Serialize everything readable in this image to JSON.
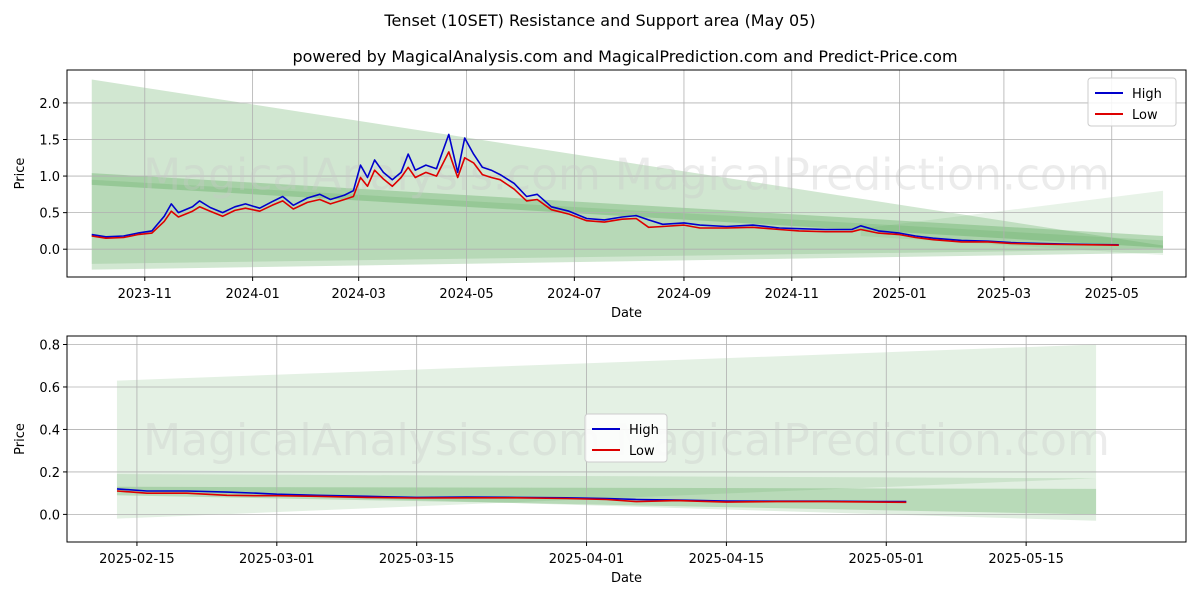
{
  "title": "Tenset (10SET) Resistance and Support area (May 05)",
  "subtitle": "powered by MagicalAnalysis.com and MagicalPrediction.com and Predict-Price.com",
  "watermark": "MagicalAnalysis.com    MagicalPrediction.com",
  "colors": {
    "high": "#0000cc",
    "low": "#dd0000",
    "band": "#5aa85a",
    "grid": "#b0b0b0"
  },
  "chart_data": [
    {
      "type": "line",
      "id": "top",
      "xlabel": "Date",
      "ylabel": "Price",
      "xlim": [
        "2023-09-18",
        "2025-06-12"
      ],
      "ylim": [
        -0.38,
        2.45
      ],
      "yticks": [
        0.0,
        0.5,
        1.0,
        1.5,
        2.0
      ],
      "ytick_labels": [
        "0.0",
        "0.5",
        "1.0",
        "1.5",
        "2.0"
      ],
      "xticks": [
        "2023-11-01",
        "2024-01-01",
        "2024-03-01",
        "2024-05-01",
        "2024-07-01",
        "2024-09-01",
        "2024-11-01",
        "2025-01-01",
        "2025-03-01",
        "2025-05-01"
      ],
      "xtick_labels": [
        "2023-11",
        "2024-01",
        "2024-03",
        "2024-05",
        "2024-07",
        "2024-09",
        "2024-11",
        "2025-01",
        "2025-03",
        "2025-05"
      ],
      "legend": {
        "position": "top-right",
        "entries": [
          "High",
          "Low"
        ]
      },
      "bands": [
        {
          "x": [
            "2023-10-02",
            "2025-05-30"
          ],
          "upper": [
            2.32,
            0.05
          ],
          "lower": [
            -0.28,
            -0.05
          ],
          "opacity": 0.28
        },
        {
          "x": [
            "2023-10-02",
            "2025-05-30"
          ],
          "upper": [
            1.04,
            0.18
          ],
          "lower": [
            0.88,
            0.02
          ],
          "opacity": 0.35
        },
        {
          "x": [
            "2023-10-02",
            "2025-05-30"
          ],
          "upper": [
            0.95,
            0.12
          ],
          "lower": [
            -0.2,
            0.0
          ],
          "opacity": 0.22
        },
        {
          "x": [
            "2024-12-10",
            "2025-05-30"
          ],
          "upper": [
            0.28,
            0.8
          ],
          "lower": [
            0.18,
            -0.08
          ],
          "opacity": 0.14
        }
      ],
      "series": [
        {
          "name": "High",
          "points": [
            [
              "2023-10-02",
              0.2
            ],
            [
              "2023-10-10",
              0.17
            ],
            [
              "2023-10-20",
              0.18
            ],
            [
              "2023-10-28",
              0.22
            ],
            [
              "2023-11-05",
              0.25
            ],
            [
              "2023-11-12",
              0.45
            ],
            [
              "2023-11-16",
              0.62
            ],
            [
              "2023-11-20",
              0.5
            ],
            [
              "2023-11-28",
              0.58
            ],
            [
              "2023-12-02",
              0.66
            ],
            [
              "2023-12-08",
              0.57
            ],
            [
              "2023-12-15",
              0.5
            ],
            [
              "2023-12-22",
              0.58
            ],
            [
              "2023-12-28",
              0.62
            ],
            [
              "2024-01-05",
              0.56
            ],
            [
              "2024-01-12",
              0.65
            ],
            [
              "2024-01-18",
              0.72
            ],
            [
              "2024-01-24",
              0.6
            ],
            [
              "2024-02-01",
              0.7
            ],
            [
              "2024-02-08",
              0.75
            ],
            [
              "2024-02-14",
              0.68
            ],
            [
              "2024-02-22",
              0.74
            ],
            [
              "2024-02-27",
              0.8
            ],
            [
              "2024-03-02",
              1.15
            ],
            [
              "2024-03-06",
              0.98
            ],
            [
              "2024-03-10",
              1.22
            ],
            [
              "2024-03-15",
              1.05
            ],
            [
              "2024-03-20",
              0.95
            ],
            [
              "2024-03-25",
              1.05
            ],
            [
              "2024-03-29",
              1.3
            ],
            [
              "2024-04-02",
              1.08
            ],
            [
              "2024-04-08",
              1.15
            ],
            [
              "2024-04-14",
              1.1
            ],
            [
              "2024-04-21",
              1.57
            ],
            [
              "2024-04-26",
              1.05
            ],
            [
              "2024-04-30",
              1.52
            ],
            [
              "2024-05-05",
              1.3
            ],
            [
              "2024-05-10",
              1.12
            ],
            [
              "2024-05-15",
              1.08
            ],
            [
              "2024-05-20",
              1.02
            ],
            [
              "2024-05-28",
              0.9
            ],
            [
              "2024-06-04",
              0.72
            ],
            [
              "2024-06-10",
              0.75
            ],
            [
              "2024-06-18",
              0.58
            ],
            [
              "2024-06-28",
              0.52
            ],
            [
              "2024-07-08",
              0.42
            ],
            [
              "2024-07-18",
              0.4
            ],
            [
              "2024-07-28",
              0.44
            ],
            [
              "2024-08-05",
              0.46
            ],
            [
              "2024-08-12",
              0.4
            ],
            [
              "2024-08-20",
              0.34
            ],
            [
              "2024-09-01",
              0.36
            ],
            [
              "2024-09-10",
              0.33
            ],
            [
              "2024-09-25",
              0.31
            ],
            [
              "2024-10-10",
              0.33
            ],
            [
              "2024-10-25",
              0.29
            ],
            [
              "2024-11-05",
              0.28
            ],
            [
              "2024-11-20",
              0.27
            ],
            [
              "2024-12-05",
              0.27
            ],
            [
              "2024-12-10",
              0.32
            ],
            [
              "2024-12-20",
              0.25
            ],
            [
              "2025-01-01",
              0.22
            ],
            [
              "2025-01-10",
              0.18
            ],
            [
              "2025-01-20",
              0.15
            ],
            [
              "2025-02-05",
              0.12
            ],
            [
              "2025-02-20",
              0.11
            ],
            [
              "2025-03-05",
              0.09
            ],
            [
              "2025-03-20",
              0.08
            ],
            [
              "2025-04-05",
              0.07
            ],
            [
              "2025-04-20",
              0.065
            ],
            [
              "2025-05-05",
              0.06
            ]
          ]
        },
        {
          "name": "Low",
          "points": [
            [
              "2023-10-02",
              0.18
            ],
            [
              "2023-10-10",
              0.15
            ],
            [
              "2023-10-20",
              0.16
            ],
            [
              "2023-10-28",
              0.2
            ],
            [
              "2023-11-05",
              0.22
            ],
            [
              "2023-11-12",
              0.38
            ],
            [
              "2023-11-16",
              0.52
            ],
            [
              "2023-11-20",
              0.44
            ],
            [
              "2023-11-28",
              0.52
            ],
            [
              "2023-12-02",
              0.58
            ],
            [
              "2023-12-08",
              0.52
            ],
            [
              "2023-12-15",
              0.45
            ],
            [
              "2023-12-22",
              0.53
            ],
            [
              "2023-12-28",
              0.56
            ],
            [
              "2024-01-05",
              0.52
            ],
            [
              "2024-01-12",
              0.6
            ],
            [
              "2024-01-18",
              0.66
            ],
            [
              "2024-01-24",
              0.55
            ],
            [
              "2024-02-01",
              0.64
            ],
            [
              "2024-02-08",
              0.68
            ],
            [
              "2024-02-14",
              0.62
            ],
            [
              "2024-02-22",
              0.68
            ],
            [
              "2024-02-27",
              0.72
            ],
            [
              "2024-03-02",
              0.98
            ],
            [
              "2024-03-06",
              0.86
            ],
            [
              "2024-03-10",
              1.08
            ],
            [
              "2024-03-15",
              0.96
            ],
            [
              "2024-03-20",
              0.86
            ],
            [
              "2024-03-25",
              0.98
            ],
            [
              "2024-03-29",
              1.12
            ],
            [
              "2024-04-02",
              0.98
            ],
            [
              "2024-04-08",
              1.05
            ],
            [
              "2024-04-14",
              1.0
            ],
            [
              "2024-04-21",
              1.33
            ],
            [
              "2024-04-26",
              0.98
            ],
            [
              "2024-04-30",
              1.25
            ],
            [
              "2024-05-05",
              1.18
            ],
            [
              "2024-05-10",
              1.02
            ],
            [
              "2024-05-15",
              0.98
            ],
            [
              "2024-05-20",
              0.95
            ],
            [
              "2024-05-28",
              0.82
            ],
            [
              "2024-06-04",
              0.66
            ],
            [
              "2024-06-10",
              0.68
            ],
            [
              "2024-06-18",
              0.54
            ],
            [
              "2024-06-28",
              0.48
            ],
            [
              "2024-07-08",
              0.39
            ],
            [
              "2024-07-18",
              0.37
            ],
            [
              "2024-07-28",
              0.41
            ],
            [
              "2024-08-05",
              0.42
            ],
            [
              "2024-08-12",
              0.3
            ],
            [
              "2024-08-20",
              0.31
            ],
            [
              "2024-09-01",
              0.33
            ],
            [
              "2024-09-10",
              0.29
            ],
            [
              "2024-09-25",
              0.29
            ],
            [
              "2024-10-10",
              0.3
            ],
            [
              "2024-10-25",
              0.27
            ],
            [
              "2024-11-05",
              0.25
            ],
            [
              "2024-11-20",
              0.24
            ],
            [
              "2024-12-05",
              0.24
            ],
            [
              "2024-12-10",
              0.27
            ],
            [
              "2024-12-20",
              0.22
            ],
            [
              "2025-01-01",
              0.2
            ],
            [
              "2025-01-10",
              0.16
            ],
            [
              "2025-01-20",
              0.13
            ],
            [
              "2025-02-05",
              0.1
            ],
            [
              "2025-02-20",
              0.1
            ],
            [
              "2025-03-05",
              0.08
            ],
            [
              "2025-03-20",
              0.07
            ],
            [
              "2025-04-05",
              0.065
            ],
            [
              "2025-04-20",
              0.06
            ],
            [
              "2025-05-05",
              0.055
            ]
          ]
        }
      ]
    },
    {
      "type": "line",
      "id": "bottom",
      "xlabel": "Date",
      "ylabel": "Price",
      "xlim": [
        "2025-02-08",
        "2025-05-31"
      ],
      "ylim": [
        -0.13,
        0.84
      ],
      "yticks": [
        0.0,
        0.2,
        0.4,
        0.6,
        0.8
      ],
      "ytick_labels": [
        "0.0",
        "0.2",
        "0.4",
        "0.6",
        "0.8"
      ],
      "xticks": [
        "2025-02-15",
        "2025-03-01",
        "2025-03-15",
        "2025-04-01",
        "2025-04-15",
        "2025-05-01",
        "2025-05-15"
      ],
      "xtick_labels": [
        "2025-02-15",
        "2025-03-01",
        "2025-03-15",
        "2025-04-01",
        "2025-04-15",
        "2025-05-01",
        "2025-05-15"
      ],
      "legend": {
        "position": "center",
        "entries": [
          "High",
          "Low"
        ]
      },
      "bands": [
        {
          "x": [
            "2025-02-13",
            "2025-05-22"
          ],
          "upper": [
            0.63,
            0.8
          ],
          "lower": [
            -0.02,
            0.17
          ],
          "opacity": 0.16
        },
        {
          "x": [
            "2025-02-13",
            "2025-05-22"
          ],
          "upper": [
            0.19,
            0.17
          ],
          "lower": [
            0.11,
            -0.03
          ],
          "opacity": 0.18
        },
        {
          "x": [
            "2025-02-13",
            "2025-05-22"
          ],
          "upper": [
            0.13,
            0.12
          ],
          "lower": [
            0.09,
            0.0
          ],
          "opacity": 0.3
        }
      ],
      "series": [
        {
          "name": "High",
          "points": [
            [
              "2025-02-13",
              0.12
            ],
            [
              "2025-02-16",
              0.11
            ],
            [
              "2025-02-20",
              0.11
            ],
            [
              "2025-02-24",
              0.105
            ],
            [
              "2025-02-27",
              0.1
            ],
            [
              "2025-03-01",
              0.095
            ],
            [
              "2025-03-05",
              0.09
            ],
            [
              "2025-03-10",
              0.085
            ],
            [
              "2025-03-15",
              0.08
            ],
            [
              "2025-03-20",
              0.082
            ],
            [
              "2025-03-25",
              0.08
            ],
            [
              "2025-03-30",
              0.078
            ],
            [
              "2025-04-03",
              0.075
            ],
            [
              "2025-04-06",
              0.07
            ],
            [
              "2025-04-10",
              0.068
            ],
            [
              "2025-04-15",
              0.063
            ],
            [
              "2025-04-20",
              0.062
            ],
            [
              "2025-04-25",
              0.062
            ],
            [
              "2025-04-30",
              0.06
            ],
            [
              "2025-05-03",
              0.06
            ]
          ]
        },
        {
          "name": "Low",
          "points": [
            [
              "2025-02-13",
              0.11
            ],
            [
              "2025-02-16",
              0.1
            ],
            [
              "2025-02-20",
              0.1
            ],
            [
              "2025-02-24",
              0.09
            ],
            [
              "2025-02-27",
              0.088
            ],
            [
              "2025-03-01",
              0.088
            ],
            [
              "2025-03-05",
              0.085
            ],
            [
              "2025-03-10",
              0.08
            ],
            [
              "2025-03-15",
              0.077
            ],
            [
              "2025-03-20",
              0.078
            ],
            [
              "2025-03-25",
              0.078
            ],
            [
              "2025-03-30",
              0.075
            ],
            [
              "2025-04-03",
              0.07
            ],
            [
              "2025-04-06",
              0.06
            ],
            [
              "2025-04-10",
              0.065
            ],
            [
              "2025-04-15",
              0.058
            ],
            [
              "2025-04-20",
              0.06
            ],
            [
              "2025-04-25",
              0.06
            ],
            [
              "2025-04-30",
              0.058
            ],
            [
              "2025-05-03",
              0.057
            ]
          ]
        }
      ]
    }
  ]
}
